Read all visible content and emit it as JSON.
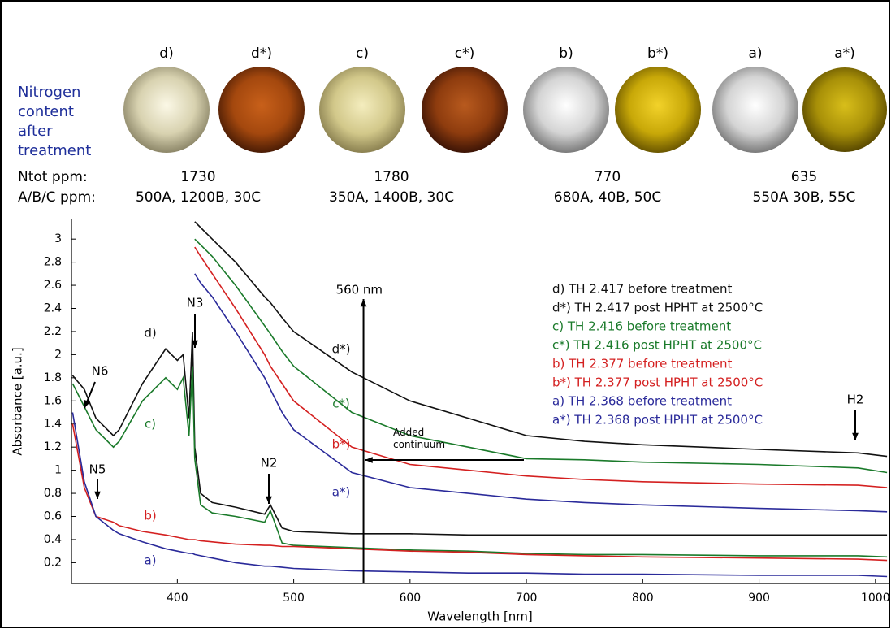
{
  "header": {
    "title": "Nitrogen content after treatment",
    "samples": [
      "d)",
      "d*)",
      "c)",
      "c*)",
      "b)",
      "b*)",
      "a)",
      "a*)"
    ]
  },
  "rows": [
    {
      "label": "Ntot ppm:",
      "values": [
        1730,
        1780,
        770,
        635
      ]
    },
    {
      "label": "A/B/C ppm:",
      "values": [
        "500A, 1200B, 30C",
        "350A, 1400B, 30C",
        "680A, 40B, 50C",
        "550A 30B, 55C"
      ]
    }
  ],
  "chart_data": {
    "type": "line",
    "x_label": "Wavelength [nm]",
    "y_label": "Absorbance [a.u.]",
    "xlim": [
      309,
      1012
    ],
    "ylim": [
      0.02,
      3.17
    ],
    "xticks": [
      400,
      500,
      600,
      700,
      800,
      900,
      1000
    ],
    "yticks": [
      0.2,
      0.4,
      0.6,
      0.8,
      1,
      1.2,
      1.4,
      1.6,
      1.8,
      2,
      2.2,
      2.4,
      2.6,
      2.8,
      3
    ],
    "x": [
      310,
      320,
      330,
      345,
      350,
      370,
      390,
      400,
      405,
      410,
      413,
      415,
      420,
      430,
      450,
      475,
      480,
      490,
      500,
      550,
      600,
      650,
      700,
      750,
      800,
      900,
      985,
      1010
    ],
    "series": [
      {
        "name": "d) TH 2.417 before treatment",
        "label": "d)",
        "color": "#111111",
        "values": [
          1.82,
          1.7,
          1.45,
          1.3,
          1.35,
          1.75,
          2.05,
          1.95,
          2.0,
          1.45,
          2.2,
          1.2,
          0.8,
          0.72,
          0.68,
          0.62,
          0.7,
          0.5,
          0.47,
          0.45,
          0.45,
          0.44,
          0.44,
          0.44,
          0.44,
          0.44,
          0.44,
          0.44
        ]
      },
      {
        "name": "d*) TH 2.417 post HPHT at 2500°C",
        "label": "d*)",
        "color": "#111111",
        "values": [
          null,
          null,
          null,
          null,
          null,
          null,
          null,
          null,
          null,
          null,
          null,
          3.15,
          3.1,
          3.0,
          2.8,
          2.5,
          2.45,
          2.32,
          2.2,
          1.85,
          1.6,
          1.45,
          1.3,
          1.25,
          1.22,
          1.18,
          1.15,
          1.12
        ]
      },
      {
        "name": "c) TH 2.416 before treatment",
        "label": "c)",
        "color": "#1a7a2a",
        "values": [
          1.75,
          1.55,
          1.35,
          1.2,
          1.25,
          1.6,
          1.8,
          1.7,
          1.8,
          1.3,
          1.9,
          1.1,
          0.7,
          0.63,
          0.6,
          0.55,
          0.65,
          0.37,
          0.35,
          0.33,
          0.31,
          0.3,
          0.28,
          0.27,
          0.27,
          0.26,
          0.26,
          0.25
        ]
      },
      {
        "name": "c*)  TH 2.416 post HPHT at 2500°C",
        "label": "c*)",
        "color": "#1a7a2a",
        "values": [
          null,
          null,
          null,
          null,
          null,
          null,
          null,
          null,
          null,
          null,
          null,
          3.0,
          2.95,
          2.85,
          2.6,
          2.25,
          2.18,
          2.03,
          1.9,
          1.5,
          1.3,
          1.2,
          1.1,
          1.09,
          1.07,
          1.05,
          1.02,
          0.98
        ]
      },
      {
        "name": "b) TH 2.377 before treatment",
        "label": "b)",
        "color": "#d42020",
        "values": [
          1.4,
          0.85,
          0.6,
          0.55,
          0.52,
          0.47,
          0.44,
          0.42,
          0.41,
          0.4,
          0.4,
          0.4,
          0.39,
          0.38,
          0.36,
          0.35,
          0.35,
          0.34,
          0.34,
          0.32,
          0.3,
          0.29,
          0.27,
          0.26,
          0.25,
          0.24,
          0.23,
          0.22
        ]
      },
      {
        "name": "b*) TH 2.377 post HPHT at 2500°C",
        "label": "b*)",
        "color": "#d42020",
        "values": [
          null,
          null,
          null,
          null,
          null,
          null,
          null,
          null,
          null,
          null,
          null,
          2.93,
          2.85,
          2.7,
          2.4,
          2.0,
          1.9,
          1.75,
          1.6,
          1.2,
          1.05,
          1.0,
          0.95,
          0.92,
          0.9,
          0.88,
          0.87,
          0.85
        ]
      },
      {
        "name": "a) TH 2.368 before treatment",
        "label": "a)",
        "color": "#2a2a9a",
        "values": [
          1.5,
          0.9,
          0.6,
          0.48,
          0.45,
          0.38,
          0.32,
          0.3,
          0.29,
          0.28,
          0.28,
          0.27,
          0.26,
          0.24,
          0.2,
          0.17,
          0.17,
          0.16,
          0.15,
          0.13,
          0.12,
          0.11,
          0.11,
          0.1,
          0.1,
          0.09,
          0.09,
          0.08
        ]
      },
      {
        "name": "a*) TH 2.368 post HPHT at 2500°C",
        "label": "a*)",
        "color": "#2a2a9a",
        "values": [
          null,
          null,
          null,
          null,
          null,
          null,
          null,
          null,
          null,
          null,
          null,
          2.7,
          2.62,
          2.5,
          2.2,
          1.8,
          1.7,
          1.5,
          1.35,
          0.98,
          0.85,
          0.8,
          0.75,
          0.72,
          0.7,
          0.67,
          0.65,
          0.64
        ]
      }
    ],
    "annotations": [
      "N6",
      "N5",
      "N3",
      "N2",
      "H2"
    ],
    "marker": {
      "text": "560 nm",
      "x": 560
    },
    "continuum": "Added continuum"
  }
}
